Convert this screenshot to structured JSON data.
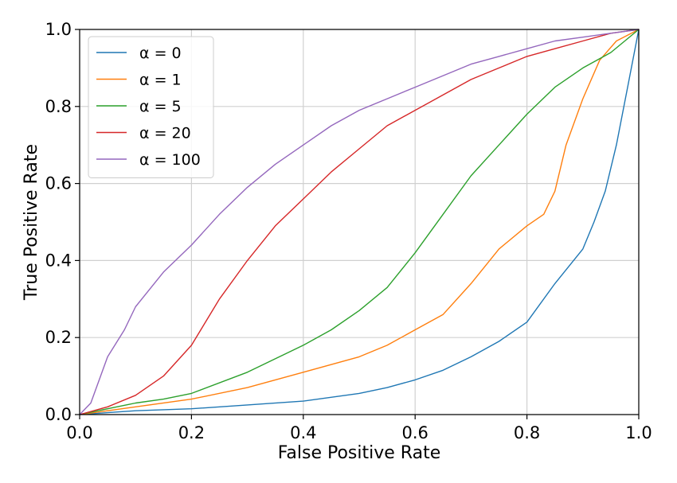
{
  "chart_data": {
    "type": "line",
    "title": "",
    "xlabel": "False Positive Rate",
    "ylabel": "True Positive Rate",
    "xlim": [
      0.0,
      1.0
    ],
    "ylim": [
      0.0,
      1.0
    ],
    "xticks": [
      "0.0",
      "0.2",
      "0.4",
      "0.6",
      "0.8",
      "1.0"
    ],
    "yticks": [
      "0.0",
      "0.2",
      "0.4",
      "0.6",
      "0.8",
      "1.0"
    ],
    "grid": true,
    "legend_position": "top-left",
    "series": [
      {
        "name": "α = 0",
        "color": "#1f77b4",
        "x": [
          0,
          0.05,
          0.1,
          0.2,
          0.3,
          0.4,
          0.5,
          0.55,
          0.6,
          0.65,
          0.7,
          0.75,
          0.8,
          0.85,
          0.9,
          0.92,
          0.94,
          0.96,
          0.98,
          1.0
        ],
        "y": [
          0,
          0.005,
          0.01,
          0.015,
          0.025,
          0.035,
          0.055,
          0.07,
          0.09,
          0.115,
          0.15,
          0.19,
          0.24,
          0.34,
          0.43,
          0.5,
          0.58,
          0.7,
          0.85,
          1.0
        ]
      },
      {
        "name": "α = 1",
        "color": "#ff7f0e",
        "x": [
          0,
          0.05,
          0.1,
          0.2,
          0.3,
          0.4,
          0.5,
          0.55,
          0.6,
          0.65,
          0.7,
          0.75,
          0.8,
          0.83,
          0.85,
          0.87,
          0.9,
          0.93,
          0.96,
          1.0
        ],
        "y": [
          0,
          0.01,
          0.02,
          0.04,
          0.07,
          0.11,
          0.15,
          0.18,
          0.22,
          0.26,
          0.34,
          0.43,
          0.49,
          0.52,
          0.58,
          0.7,
          0.82,
          0.92,
          0.97,
          1.0
        ]
      },
      {
        "name": "α = 5",
        "color": "#2ca02c",
        "x": [
          0,
          0.05,
          0.1,
          0.15,
          0.2,
          0.3,
          0.4,
          0.45,
          0.5,
          0.55,
          0.6,
          0.65,
          0.7,
          0.75,
          0.8,
          0.85,
          0.9,
          0.95,
          1.0
        ],
        "y": [
          0,
          0.015,
          0.03,
          0.04,
          0.055,
          0.11,
          0.18,
          0.22,
          0.27,
          0.33,
          0.42,
          0.52,
          0.62,
          0.7,
          0.78,
          0.85,
          0.9,
          0.94,
          1.0
        ]
      },
      {
        "name": "α = 20",
        "color": "#d62728",
        "x": [
          0,
          0.05,
          0.1,
          0.15,
          0.2,
          0.25,
          0.3,
          0.35,
          0.4,
          0.45,
          0.5,
          0.55,
          0.6,
          0.65,
          0.7,
          0.75,
          0.8,
          0.85,
          0.9,
          0.95,
          1.0
        ],
        "y": [
          0,
          0.02,
          0.05,
          0.1,
          0.18,
          0.3,
          0.4,
          0.49,
          0.56,
          0.63,
          0.69,
          0.75,
          0.79,
          0.83,
          0.87,
          0.9,
          0.93,
          0.95,
          0.97,
          0.99,
          1.0
        ]
      },
      {
        "name": "α = 100",
        "color": "#9467bd",
        "x": [
          0,
          0.02,
          0.05,
          0.08,
          0.1,
          0.15,
          0.2,
          0.25,
          0.3,
          0.35,
          0.4,
          0.45,
          0.5,
          0.55,
          0.6,
          0.65,
          0.7,
          0.75,
          0.8,
          0.85,
          0.9,
          0.95,
          1.0
        ],
        "y": [
          0,
          0.03,
          0.15,
          0.22,
          0.28,
          0.37,
          0.44,
          0.52,
          0.59,
          0.65,
          0.7,
          0.75,
          0.79,
          0.82,
          0.85,
          0.88,
          0.91,
          0.93,
          0.95,
          0.97,
          0.98,
          0.99,
          1.0
        ]
      }
    ]
  }
}
